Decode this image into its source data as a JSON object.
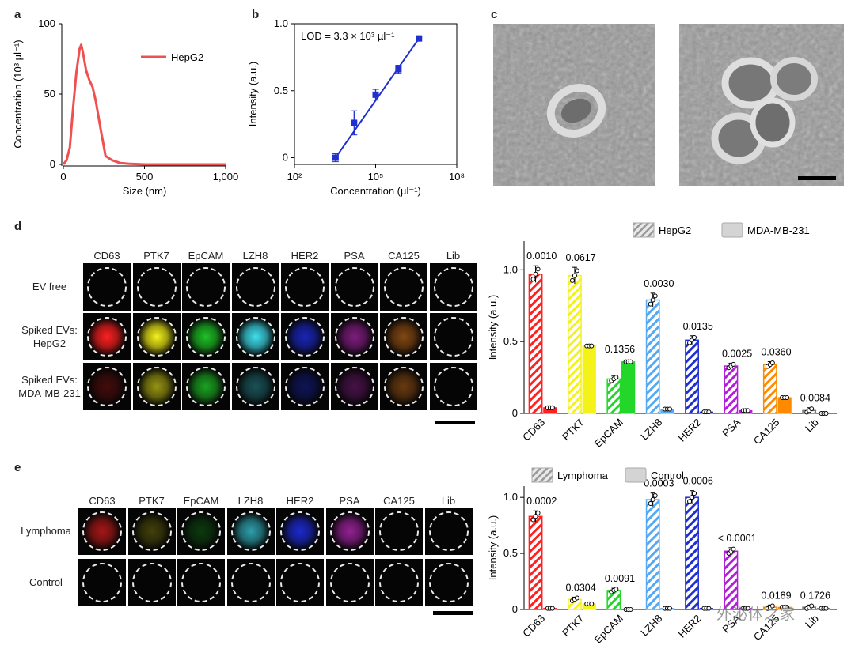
{
  "panels": {
    "a": "a",
    "b": "b",
    "c": "c",
    "d": "d",
    "e": "e"
  },
  "colors": {
    "HepG2_stripe": "#ff2020",
    "blue": "#1f2fd0",
    "gray": "#cfcfcf"
  },
  "chart_data": [
    {
      "id": "a",
      "type": "line",
      "xlabel": "Size (nm)",
      "ylabel": "Concentration (10³ µl⁻¹)",
      "xticks": [
        "0",
        "500",
        "1,000"
      ],
      "yticks": [
        "0",
        "50",
        "100"
      ],
      "xlim": [
        0,
        1000
      ],
      "ylim": [
        0,
        100
      ],
      "series": [
        {
          "name": "HepG2",
          "color": "#f05050",
          "x": [
            0,
            20,
            40,
            60,
            80,
            100,
            110,
            120,
            140,
            160,
            180,
            200,
            230,
            260,
            300,
            350,
            400,
            500,
            1000
          ],
          "y": [
            0,
            3,
            12,
            40,
            65,
            82,
            85,
            80,
            67,
            60,
            55,
            45,
            25,
            6,
            3,
            1,
            0.5,
            0,
            0
          ]
        }
      ]
    },
    {
      "id": "b",
      "type": "scatter",
      "annotation": "LOD = 3.3 × 10³ µl⁻¹",
      "xlabel": "Concentration (µl⁻¹)",
      "ylabel": "Intensity (a.u.)",
      "xscale": "log",
      "xticks": [
        "10²",
        "10⁵",
        "10⁸"
      ],
      "yticks": [
        "0",
        "0.5",
        "1.0"
      ],
      "xlim": [
        100,
        100000000
      ],
      "ylim": [
        -0.05,
        1.0
      ],
      "points": [
        {
          "x": 3300,
          "y": 0.0,
          "err": 0.03
        },
        {
          "x": 16000,
          "y": 0.26,
          "err": 0.09
        },
        {
          "x": 100000,
          "y": 0.47,
          "err": 0.04
        },
        {
          "x": 700000,
          "y": 0.66,
          "err": 0.03
        },
        {
          "x": 4000000,
          "y": 0.89,
          "err": 0.01
        }
      ],
      "fit": [
        [
          3300,
          0.0
        ],
        [
          4000000,
          0.89
        ]
      ]
    },
    {
      "id": "d",
      "type": "bar",
      "ylabel": "Intensity (a.u.)",
      "yticks": [
        "0",
        "0.5",
        "1.0"
      ],
      "ylim": [
        0,
        1.2
      ],
      "categories": [
        "CD63",
        "PTK7",
        "EpCAM",
        "LZH8",
        "HER2",
        "PSA",
        "CA125",
        "Lib"
      ],
      "colors": [
        "#ff2020",
        "#f5f21a",
        "#22d72a",
        "#55a9f2",
        "#1f2fd0",
        "#b21fd8",
        "#ff8a00",
        "#777777"
      ],
      "series": [
        {
          "name": "HepG2",
          "values": [
            0.97,
            0.96,
            0.24,
            0.79,
            0.51,
            0.33,
            0.34,
            0.02
          ]
        },
        {
          "name": "MDA-MB-231",
          "values": [
            0.04,
            0.47,
            0.36,
            0.03,
            0.01,
            0.02,
            0.11,
            0.0
          ]
        }
      ],
      "pvalues": [
        "0.0010",
        "0.0617",
        "0.1356",
        "0.0030",
        "0.0135",
        "0.0025",
        "0.0360",
        "0.0084"
      ]
    },
    {
      "id": "e",
      "type": "bar",
      "ylabel": "Intensity (a.u.)",
      "yticks": [
        "0",
        "0.5",
        "1.0"
      ],
      "ylim": [
        0,
        1.1
      ],
      "categories": [
        "CD63",
        "PTK7",
        "EpCAM",
        "LZH8",
        "HER2",
        "PSA",
        "CA125",
        "Lib"
      ],
      "colors": [
        "#ff2020",
        "#f5f21a",
        "#22d72a",
        "#55a9f2",
        "#1f2fd0",
        "#b21fd8",
        "#ff8a00",
        "#777777"
      ],
      "series": [
        {
          "name": "Lymphoma",
          "values": [
            0.83,
            0.09,
            0.17,
            0.98,
            1.0,
            0.52,
            0.02,
            0.02
          ]
        },
        {
          "name": "Control",
          "values": [
            0.01,
            0.05,
            0.0,
            0.01,
            0.01,
            0.01,
            0.02,
            0.01
          ]
        }
      ],
      "pvalues": [
        "0.0002",
        "0.0304",
        "0.0091",
        "0.0003",
        "0.0006",
        "< 0.0001",
        "0.0189",
        "0.1726"
      ]
    }
  ],
  "micro_d": {
    "columns": [
      "CD63",
      "PTK7",
      "EpCAM",
      "LZH8",
      "HER2",
      "PSA",
      "CA125",
      "Lib"
    ],
    "rows": [
      {
        "label1": "EV free",
        "label2": ""
      },
      {
        "label1": "Spiked EVs:",
        "label2": "HepG2"
      },
      {
        "label1": "Spiked EVs:",
        "label2": "MDA-MB-231"
      }
    ]
  },
  "micro_e": {
    "columns": [
      "CD63",
      "PTK7",
      "EpCAM",
      "LZH8",
      "HER2",
      "PSA",
      "CA125",
      "Lib"
    ],
    "rows": [
      {
        "label1": "Lymphoma"
      },
      {
        "label1": "Control"
      }
    ]
  },
  "watermark": "外泌体之家"
}
